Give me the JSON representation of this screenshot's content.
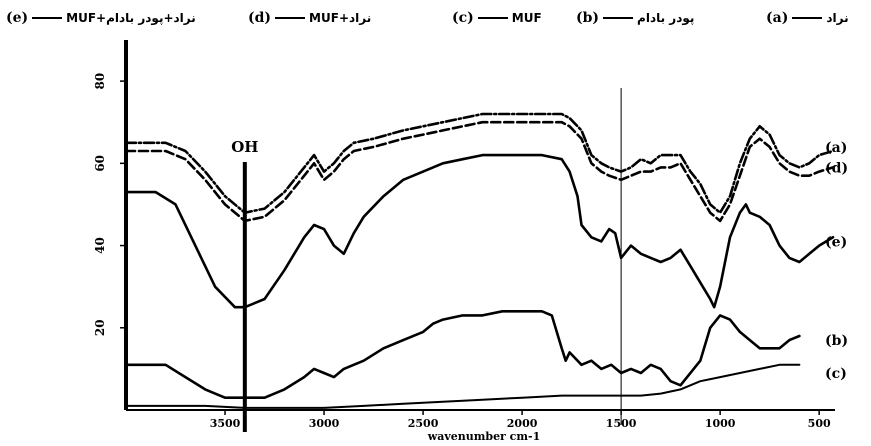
{
  "chart_data": {
    "type": "line",
    "title": "",
    "xlabel": "wavenumber  cm-1",
    "ylabel": "",
    "xlim": [
      4000,
      420
    ],
    "ylim": [
      0,
      90
    ],
    "x_ticks": [
      3500,
      3000,
      2500,
      2000,
      1500,
      1000,
      500
    ],
    "x_tick_labels": [
      "3500",
      "3000",
      "2500",
      "2000",
      "1500",
      "1000",
      "500"
    ],
    "y_ticks": [
      20,
      40,
      60,
      80
    ],
    "y_tick_labels": [
      "20",
      "40",
      "60",
      "80"
    ],
    "grid": false,
    "legend_position": "top",
    "annotations": [
      {
        "text": "OH",
        "x": 3400
      },
      {
        "text": "",
        "x": 1500
      }
    ],
    "legend": [
      {
        "code": "(a)",
        "label": "نراد"
      },
      {
        "code": "(b)",
        "label": "پودر بادام"
      },
      {
        "code": "(c)",
        "label": "MUF"
      },
      {
        "code": "(d)",
        "label": "نراد+MUF"
      },
      {
        "code": "(e)",
        "label": "نراد+پودر بادام+MUF"
      }
    ],
    "series": [
      {
        "code": "(a)",
        "style": "dashdot",
        "x": [
          4000,
          3800,
          3700,
          3600,
          3500,
          3400,
          3300,
          3200,
          3100,
          3050,
          3000,
          2950,
          2900,
          2850,
          2750,
          2600,
          2500,
          2400,
          2300,
          2200,
          2100,
          2000,
          1900,
          1800,
          1760,
          1700,
          1650,
          1600,
          1560,
          1500,
          1450,
          1400,
          1350,
          1300,
          1250,
          1200,
          1150,
          1100,
          1050,
          1000,
          950,
          900,
          850,
          800,
          750,
          700,
          650,
          600,
          550,
          500,
          430
        ],
        "y": [
          65,
          65,
          63,
          58,
          52,
          48,
          49,
          53,
          59,
          62,
          58,
          60,
          63,
          65,
          66,
          68,
          69,
          70,
          71,
          72,
          72,
          72,
          72,
          72,
          71,
          68,
          62,
          60,
          59,
          58,
          59,
          61,
          60,
          62,
          62,
          62,
          58,
          55,
          50,
          48,
          52,
          60,
          66,
          69,
          67,
          62,
          60,
          59,
          60,
          62,
          63
        ]
      },
      {
        "code": "(d)",
        "style": "dashed",
        "x": [
          4000,
          3800,
          3700,
          3600,
          3500,
          3400,
          3300,
          3200,
          3100,
          3050,
          3000,
          2950,
          2900,
          2850,
          2750,
          2600,
          2500,
          2400,
          2300,
          2200,
          2100,
          2000,
          1900,
          1800,
          1760,
          1700,
          1650,
          1600,
          1560,
          1500,
          1450,
          1400,
          1350,
          1300,
          1250,
          1200,
          1150,
          1100,
          1050,
          1000,
          950,
          900,
          850,
          800,
          750,
          700,
          650,
          600,
          550,
          500,
          430
        ],
        "y": [
          63,
          63,
          61,
          56,
          50,
          46,
          47,
          51,
          57,
          60,
          56,
          58,
          61,
          63,
          64,
          66,
          67,
          68,
          69,
          70,
          70,
          70,
          70,
          70,
          69,
          66,
          60,
          58,
          57,
          56,
          57,
          58,
          58,
          59,
          59,
          60,
          56,
          52,
          48,
          46,
          50,
          57,
          64,
          66,
          64,
          60,
          58,
          57,
          57,
          58,
          59
        ]
      },
      {
        "code": "(e)",
        "style": "solid",
        "x": [
          4000,
          3850,
          3750,
          3650,
          3550,
          3450,
          3400,
          3300,
          3200,
          3100,
          3050,
          3000,
          2950,
          2900,
          2850,
          2800,
          2700,
          2600,
          2500,
          2400,
          2300,
          2200,
          2100,
          2000,
          1900,
          1800,
          1760,
          1720,
          1700,
          1650,
          1600,
          1560,
          1530,
          1500,
          1450,
          1400,
          1350,
          1300,
          1250,
          1200,
          1150,
          1100,
          1050,
          1030,
          1000,
          950,
          900,
          870,
          850,
          800,
          750,
          700,
          650,
          600,
          550,
          500,
          430
        ],
        "y": [
          53,
          53,
          50,
          40,
          30,
          25,
          25,
          27,
          34,
          42,
          45,
          44,
          40,
          38,
          43,
          47,
          52,
          56,
          58,
          60,
          61,
          62,
          62,
          62,
          62,
          61,
          58,
          52,
          45,
          42,
          41,
          44,
          43,
          37,
          40,
          38,
          37,
          36,
          37,
          39,
          35,
          31,
          27,
          25,
          30,
          42,
          48,
          50,
          48,
          47,
          45,
          40,
          37,
          36,
          38,
          40,
          42
        ]
      },
      {
        "code": "(b)",
        "style": "solid",
        "x": [
          4000,
          3850,
          3800,
          3700,
          3600,
          3500,
          3400,
          3300,
          3200,
          3100,
          3050,
          3000,
          2950,
          2900,
          2800,
          2700,
          2600,
          2500,
          2450,
          2400,
          2300,
          2200,
          2100,
          2000,
          1900,
          1850,
          1800,
          1780,
          1760,
          1700,
          1650,
          1600,
          1550,
          1500,
          1450,
          1400,
          1350,
          1300,
          1250,
          1200,
          1100,
          1050,
          1000,
          950,
          900,
          850,
          800,
          750,
          700,
          650,
          600
        ],
        "y": [
          11,
          11,
          11,
          8,
          5,
          3,
          3,
          3,
          5,
          8,
          10,
          9,
          8,
          10,
          12,
          15,
          17,
          19,
          21,
          22,
          23,
          23,
          24,
          24,
          24,
          23,
          15,
          12,
          14,
          11,
          12,
          10,
          11,
          9,
          10,
          9,
          11,
          10,
          7,
          6,
          12,
          20,
          23,
          22,
          19,
          17,
          15,
          15,
          15,
          17,
          18
        ]
      },
      {
        "code": "(c)",
        "style": "solid",
        "x": [
          4000,
          3800,
          3600,
          3400,
          3200,
          3000,
          2800,
          2600,
          2400,
          2200,
          2000,
          1800,
          1600,
          1400,
          1300,
          1250,
          1200,
          1150,
          1100,
          1000,
          900,
          800,
          700,
          600
        ],
        "y": [
          1,
          1,
          1,
          0.5,
          0.5,
          0.5,
          1,
          1.5,
          2,
          2.5,
          3,
          3.5,
          3.5,
          3.5,
          4,
          4.5,
          5,
          6,
          7,
          8,
          9,
          10,
          11,
          11
        ]
      }
    ],
    "series_labels": [
      {
        "code": "(a)",
        "x": 450,
        "y": 64
      },
      {
        "code": "(d)",
        "x": 450,
        "y": 59
      },
      {
        "code": "(e)",
        "x": 450,
        "y": 41
      },
      {
        "code": "(b)",
        "x": 450,
        "y": 17
      },
      {
        "code": "(c)",
        "x": 450,
        "y": 9
      }
    ]
  }
}
